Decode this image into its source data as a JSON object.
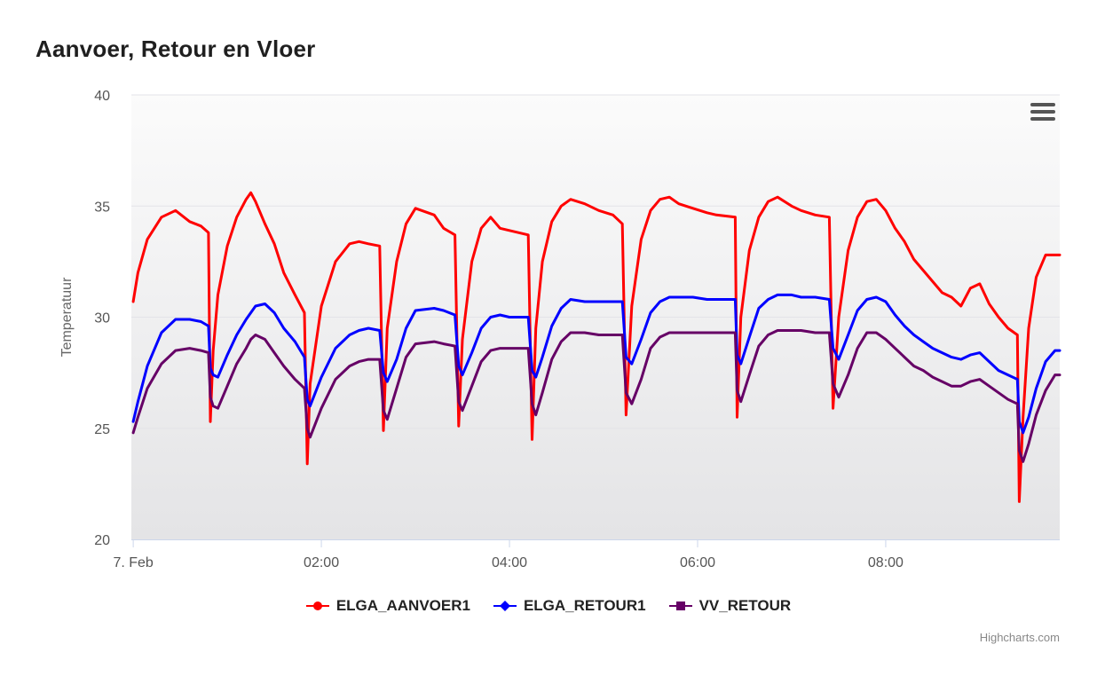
{
  "chart_data": {
    "type": "line",
    "title": "Aanvoer, Retour en Vloer",
    "ylabel": "Temperatuur",
    "xlabel": "",
    "ylim": [
      20,
      40
    ],
    "yticks": [
      "20",
      "25",
      "30",
      "35",
      "40"
    ],
    "xlim_hours": [
      -0.02,
      9.85
    ],
    "xticks": [
      {
        "label": "7. Feb",
        "hour": 0
      },
      {
        "label": "02:00",
        "hour": 2
      },
      {
        "label": "04:00",
        "hour": 4
      },
      {
        "label": "06:00",
        "hour": 6
      },
      {
        "label": "08:00",
        "hour": 8
      }
    ],
    "x_hours": [
      0.0,
      0.05,
      0.15,
      0.3,
      0.45,
      0.6,
      0.72,
      0.8,
      0.82,
      0.85,
      0.9,
      1.0,
      1.1,
      1.2,
      1.25,
      1.3,
      1.4,
      1.5,
      1.6,
      1.72,
      1.82,
      1.85,
      1.88,
      2.0,
      2.15,
      2.3,
      2.4,
      2.5,
      2.62,
      2.66,
      2.7,
      2.8,
      2.9,
      3.0,
      3.2,
      3.3,
      3.42,
      3.46,
      3.5,
      3.6,
      3.7,
      3.8,
      3.9,
      4.0,
      4.1,
      4.2,
      4.24,
      4.28,
      4.35,
      4.45,
      4.55,
      4.65,
      4.8,
      4.95,
      5.1,
      5.2,
      5.24,
      5.3,
      5.4,
      5.5,
      5.6,
      5.7,
      5.8,
      5.95,
      6.1,
      6.2,
      6.4,
      6.42,
      6.46,
      6.55,
      6.65,
      6.75,
      6.85,
      7.0,
      7.1,
      7.25,
      7.4,
      7.44,
      7.5,
      7.6,
      7.7,
      7.8,
      7.9,
      8.0,
      8.1,
      8.2,
      8.3,
      8.4,
      8.5,
      8.6,
      8.7,
      8.8,
      8.9,
      9.0,
      9.1,
      9.2,
      9.3,
      9.4,
      9.42,
      9.46,
      9.52,
      9.6,
      9.7,
      9.8,
      9.85
    ],
    "series": [
      {
        "name": "ELGA_AANVOER1",
        "color": "#ff0000",
        "marker": "circle",
        "values": [
          30.7,
          32.0,
          33.5,
          34.5,
          34.8,
          34.3,
          34.1,
          33.8,
          25.3,
          28.5,
          31.0,
          33.2,
          34.5,
          35.3,
          35.6,
          35.2,
          34.2,
          33.3,
          32.0,
          31.0,
          30.2,
          23.4,
          27.0,
          30.5,
          32.5,
          33.3,
          33.4,
          33.3,
          33.2,
          24.9,
          29.5,
          32.5,
          34.2,
          34.9,
          34.6,
          34.0,
          33.7,
          25.1,
          29.0,
          32.5,
          34.0,
          34.5,
          34.0,
          33.9,
          33.8,
          33.7,
          24.5,
          29.5,
          32.5,
          34.3,
          35.0,
          35.3,
          35.1,
          34.8,
          34.6,
          34.2,
          25.6,
          30.5,
          33.5,
          34.8,
          35.3,
          35.4,
          35.1,
          34.9,
          34.7,
          34.6,
          34.5,
          25.5,
          30.0,
          33.0,
          34.5,
          35.2,
          35.4,
          35.0,
          34.8,
          34.6,
          34.5,
          25.9,
          30.0,
          33.0,
          34.5,
          35.2,
          35.3,
          34.8,
          34.0,
          33.4,
          32.6,
          32.1,
          31.6,
          31.1,
          30.9,
          30.5,
          31.3,
          31.5,
          30.6,
          30.0,
          29.5,
          29.2,
          21.7,
          25.5,
          29.5,
          31.8,
          32.8,
          32.8,
          32.8
        ]
      },
      {
        "name": "ELGA_RETOUR1",
        "color": "#0000ff",
        "marker": "diamond",
        "values": [
          25.3,
          26.2,
          27.8,
          29.3,
          29.9,
          29.9,
          29.8,
          29.6,
          27.7,
          27.4,
          27.3,
          28.3,
          29.2,
          29.9,
          30.2,
          30.5,
          30.6,
          30.2,
          29.5,
          28.9,
          28.2,
          26.3,
          26.0,
          27.3,
          28.6,
          29.2,
          29.4,
          29.5,
          29.4,
          27.5,
          27.1,
          28.1,
          29.5,
          30.3,
          30.4,
          30.3,
          30.1,
          27.8,
          27.4,
          28.4,
          29.5,
          30.0,
          30.1,
          30.0,
          30.0,
          30.0,
          27.6,
          27.3,
          28.2,
          29.6,
          30.4,
          30.8,
          30.7,
          30.7,
          30.7,
          30.7,
          28.2,
          27.9,
          29.0,
          30.2,
          30.7,
          30.9,
          30.9,
          30.9,
          30.8,
          30.8,
          30.8,
          28.3,
          27.9,
          29.1,
          30.4,
          30.8,
          31.0,
          31.0,
          30.9,
          30.9,
          30.8,
          28.6,
          28.1,
          29.2,
          30.3,
          30.8,
          30.9,
          30.7,
          30.1,
          29.6,
          29.2,
          28.9,
          28.6,
          28.4,
          28.2,
          28.1,
          28.3,
          28.4,
          28.0,
          27.6,
          27.4,
          27.2,
          25.3,
          24.8,
          25.5,
          26.8,
          28.0,
          28.5,
          28.5
        ]
      },
      {
        "name": "VV_RETOUR",
        "color": "#660066",
        "marker": "square",
        "values": [
          24.8,
          25.5,
          26.8,
          27.9,
          28.5,
          28.6,
          28.5,
          28.4,
          26.4,
          26.0,
          25.9,
          26.9,
          27.9,
          28.6,
          29.0,
          29.2,
          29.0,
          28.4,
          27.8,
          27.2,
          26.8,
          25.0,
          24.6,
          25.9,
          27.2,
          27.8,
          28.0,
          28.1,
          28.1,
          25.8,
          25.4,
          26.8,
          28.2,
          28.8,
          28.9,
          28.8,
          28.7,
          26.2,
          25.8,
          26.9,
          28.0,
          28.5,
          28.6,
          28.6,
          28.6,
          28.6,
          26.1,
          25.6,
          26.6,
          28.1,
          28.9,
          29.3,
          29.3,
          29.2,
          29.2,
          29.2,
          26.6,
          26.1,
          27.2,
          28.6,
          29.1,
          29.3,
          29.3,
          29.3,
          29.3,
          29.3,
          29.3,
          26.7,
          26.2,
          27.4,
          28.7,
          29.2,
          29.4,
          29.4,
          29.4,
          29.3,
          29.3,
          27.0,
          26.4,
          27.4,
          28.6,
          29.3,
          29.3,
          29.0,
          28.6,
          28.2,
          27.8,
          27.6,
          27.3,
          27.1,
          26.9,
          26.9,
          27.1,
          27.2,
          26.9,
          26.6,
          26.3,
          26.1,
          24.0,
          23.5,
          24.3,
          25.6,
          26.7,
          27.4,
          27.4
        ]
      }
    ]
  },
  "credits": "Highcharts.com"
}
